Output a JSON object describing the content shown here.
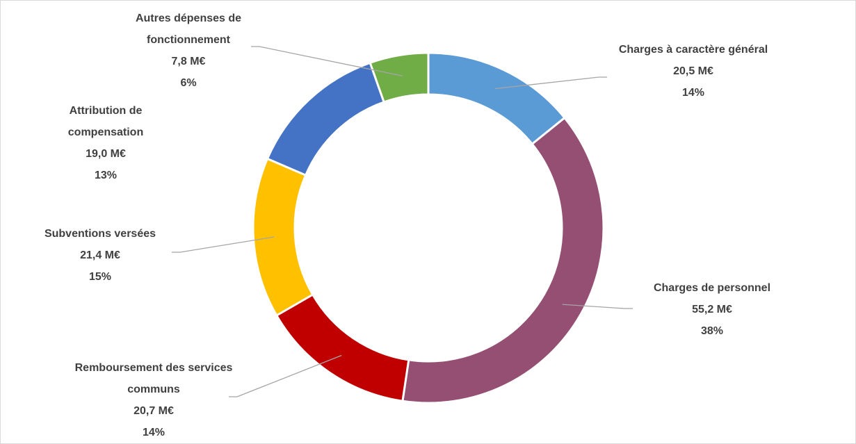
{
  "chart_data": {
    "type": "donut",
    "categories": [
      "Charges à caractère général",
      "Charges de personnel",
      "Remboursement des services communs",
      "Subventions versées",
      "Attribution de compensation",
      "Autres dépenses de fonctionnement"
    ],
    "values": [
      20.5,
      55.2,
      20.7,
      21.4,
      19.0,
      7.8
    ],
    "value_labels": [
      "20,5 M€",
      "55,2 M€",
      "20,7 M€",
      "21,4 M€",
      "19,0 M€",
      "7,8 M€"
    ],
    "percent_labels": [
      "14%",
      "38%",
      "14%",
      "15%",
      "13%",
      "6%"
    ],
    "colors": [
      "#5b9bd5",
      "#954f72",
      "#c00000",
      "#ffc000",
      "#4472c4",
      "#70ad47"
    ]
  }
}
